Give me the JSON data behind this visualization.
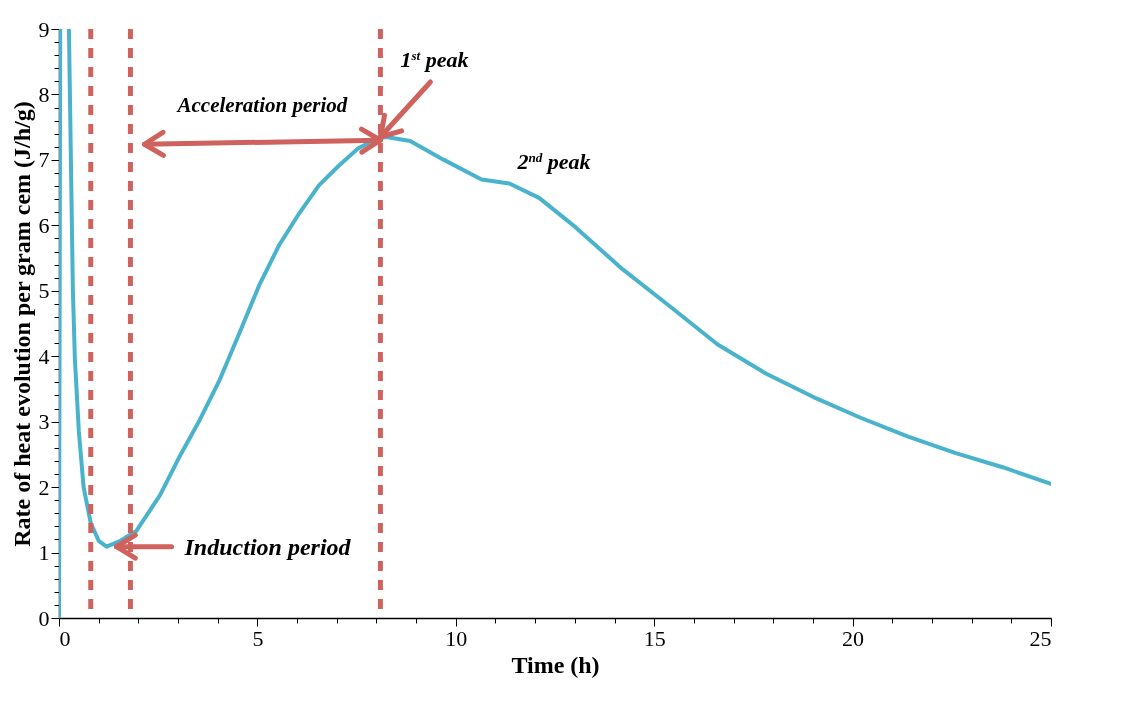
{
  "chart_data": {
    "type": "line",
    "xlabel": "Time (h)",
    "ylabel": "Rate of heat evolution  per gram cem (J/h/g)",
    "xlim": [
      0,
      25
    ],
    "ylim": [
      0,
      9
    ],
    "xticks": [
      0,
      {
        "value": 1,
        "label": null
      },
      {
        "value": 2,
        "label": null
      },
      {
        "value": 3,
        "label": null
      },
      {
        "value": 4,
        "label": null
      },
      5,
      {
        "value": 6,
        "label": null
      },
      {
        "value": 7,
        "label": null
      },
      {
        "value": 8,
        "label": null
      },
      {
        "value": 9,
        "label": null
      },
      10,
      {
        "value": 11,
        "label": null
      },
      {
        "value": 12,
        "label": null
      },
      {
        "value": 13,
        "label": null
      },
      {
        "value": 14,
        "label": null
      },
      15,
      {
        "value": 16,
        "label": null
      },
      {
        "value": 17,
        "label": null
      },
      {
        "value": 18,
        "label": null
      },
      {
        "value": 19,
        "label": null
      },
      20,
      {
        "value": 21,
        "label": null
      },
      {
        "value": 22,
        "label": null
      },
      {
        "value": 23,
        "label": null
      },
      {
        "value": 24,
        "label": null
      },
      25
    ],
    "yticks": [
      0,
      {
        "value": 0.2,
        "label": null
      },
      {
        "value": 0.4,
        "label": null
      },
      {
        "value": 0.6,
        "label": null
      },
      {
        "value": 0.8,
        "label": null
      },
      1,
      {
        "value": 1.2,
        "label": null
      },
      {
        "value": 1.4,
        "label": null
      },
      {
        "value": 1.6,
        "label": null
      },
      {
        "value": 1.8,
        "label": null
      },
      2,
      {
        "value": 2.2,
        "label": null
      },
      {
        "value": 2.4,
        "label": null
      },
      {
        "value": 2.6,
        "label": null
      },
      {
        "value": 2.8,
        "label": null
      },
      3,
      {
        "value": 3.2,
        "label": null
      },
      {
        "value": 3.4,
        "label": null
      },
      {
        "value": 3.6,
        "label": null
      },
      {
        "value": 3.8,
        "label": null
      },
      4,
      {
        "value": 4.2,
        "label": null
      },
      {
        "value": 4.4,
        "label": null
      },
      {
        "value": 4.6,
        "label": null
      },
      {
        "value": 4.8,
        "label": null
      },
      5,
      {
        "value": 5.2,
        "label": null
      },
      {
        "value": 5.4,
        "label": null
      },
      {
        "value": 5.6,
        "label": null
      },
      {
        "value": 5.8,
        "label": null
      },
      6,
      {
        "value": 6.2,
        "label": null
      },
      {
        "value": 6.4,
        "label": null
      },
      {
        "value": 6.6,
        "label": null
      },
      {
        "value": 6.8,
        "label": null
      },
      7,
      {
        "value": 7.2,
        "label": null
      },
      {
        "value": 7.4,
        "label": null
      },
      {
        "value": 7.6,
        "label": null
      },
      {
        "value": 7.8,
        "label": null
      },
      8,
      {
        "value": 8.2,
        "label": null
      },
      {
        "value": 8.4,
        "label": null
      },
      {
        "value": 8.6,
        "label": null
      },
      {
        "value": 8.8,
        "label": null
      },
      9
    ],
    "grid": false,
    "series": [
      {
        "color": "#4ab3cc",
        "x": [
          0,
          0.03,
          0.15,
          0.25,
          0.35,
          0.4,
          0.5,
          0.62,
          0.8,
          1.0,
          1.2,
          1.55,
          1.95,
          2.55,
          3.05,
          3.55,
          4.05,
          4.55,
          5.05,
          5.55,
          6.05,
          6.55,
          7.05,
          7.55,
          8.05,
          8.25,
          8.85,
          9.7,
          10.65,
          11.35,
          12.1,
          13.0,
          14.2,
          15.4,
          16.6,
          17.8,
          19.0,
          20.2,
          21.4,
          22.6,
          23.8,
          25
        ],
        "values": [
          0,
          9,
          null,
          9,
          5.0,
          3.96,
          2.85,
          2.0,
          1.45,
          1.18,
          1.09,
          1.18,
          1.33,
          1.88,
          2.48,
          3.03,
          3.64,
          4.36,
          5.09,
          5.7,
          6.18,
          6.61,
          6.91,
          7.18,
          7.33,
          7.35,
          7.29,
          7.0,
          6.7,
          6.64,
          6.42,
          5.98,
          5.33,
          4.76,
          4.18,
          3.74,
          3.38,
          3.06,
          2.77,
          2.52,
          2.3,
          2.05
        ]
      }
    ],
    "ref_lines": [
      {
        "axis": "x",
        "value": 0.8,
        "color": "#d0625e",
        "line_style": "dashed"
      },
      {
        "axis": "x",
        "value": 1.8,
        "color": "#d0625e",
        "line_style": "dashed"
      },
      {
        "axis": "x",
        "value": 8.1,
        "color": "#d0625e",
        "line_style": "dashed"
      }
    ],
    "annotations": [
      {
        "text": "Acceleration period",
        "x": 8.1,
        "y": 7.3
      },
      {
        "text": "Induction period",
        "x": 1.45,
        "y": 1.09
      },
      {
        "text": "1$^{st}$ peak",
        "x": 8.1,
        "y": 7.35
      },
      {
        "text": "2$^{nd}$ peak",
        "x": 11.3,
        "y": 6.65
      }
    ]
  }
}
